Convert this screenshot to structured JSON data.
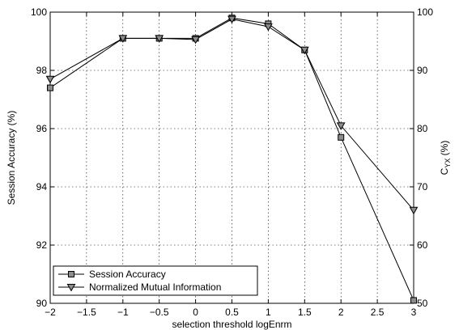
{
  "chart_data": {
    "type": "line",
    "xlabel": "selection threshold logEnrm",
    "ylabel": "Session Accuracy (%)",
    "y2label_main": "C",
    "y2label_sub": "YX",
    "y2label_unit": " (%)",
    "xlim": [
      -2,
      3
    ],
    "ylim": [
      90,
      100
    ],
    "y2lim": [
      50,
      100
    ],
    "grid": true,
    "legend_position": "bottom-left",
    "xticks": [
      "−2",
      "−1.5",
      "−1",
      "−0.5",
      "0",
      "0.5",
      "1",
      "1.5",
      "2",
      "2.5",
      "3"
    ],
    "yticks": [
      "90",
      "92",
      "94",
      "96",
      "98",
      "100"
    ],
    "y2ticks": [
      "50",
      "60",
      "70",
      "80",
      "90",
      "100"
    ],
    "x": [
      -2,
      -1,
      -0.5,
      0,
      0.5,
      1,
      1.5,
      2,
      3
    ],
    "series": [
      {
        "name": "Session Accuracy",
        "axis": "left",
        "marker": "square",
        "values": [
          97.4,
          99.1,
          99.1,
          99.1,
          99.8,
          99.6,
          98.7,
          95.7,
          90.1
        ]
      },
      {
        "name": "Normalized Mutual Information",
        "axis": "right",
        "marker": "triangle-down",
        "values": [
          88.5,
          95.5,
          95.5,
          95.3,
          98.8,
          97.5,
          93.5,
          80.5,
          66.0
        ]
      }
    ]
  }
}
